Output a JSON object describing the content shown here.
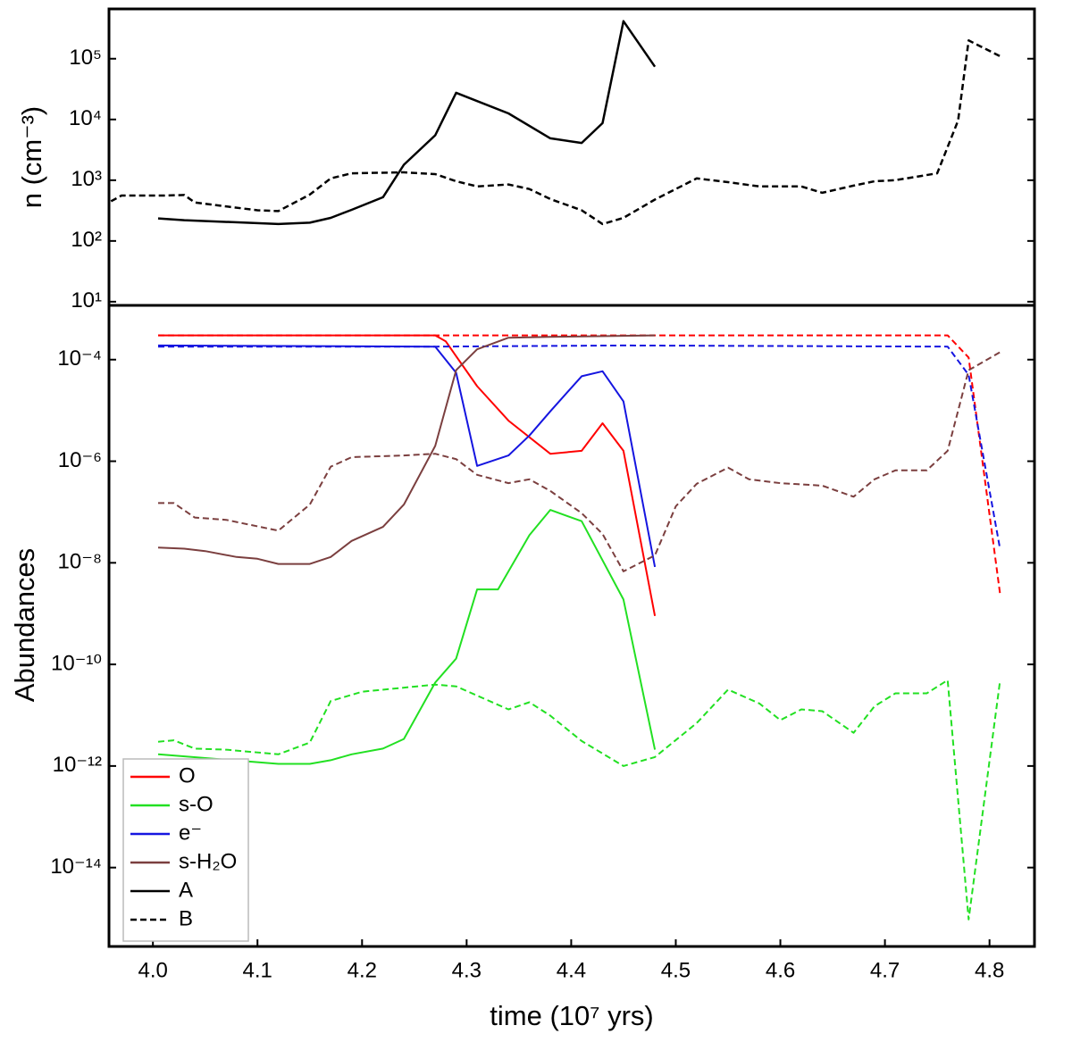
{
  "chart_data": [
    {
      "type": "line",
      "ylabel": "n (cm⁻³)",
      "log_y": true,
      "xlim": [
        3.958,
        4.843
      ],
      "ylim": [
        8.7,
        660000
      ],
      "yticks": [
        {
          "value": 10,
          "label": "10¹"
        },
        {
          "value": 100,
          "label": "10²"
        },
        {
          "value": 1000,
          "label": "10³"
        },
        {
          "value": 10000,
          "label": "10⁴"
        },
        {
          "value": 100000,
          "label": "10⁵"
        }
      ],
      "series": [
        {
          "name": "A",
          "color": "#000000",
          "dash": false,
          "x": [
            4.005,
            4.03,
            4.12,
            4.15,
            4.17,
            4.19,
            4.22,
            4.24,
            4.27,
            4.29,
            4.34,
            4.38,
            4.41,
            4.43,
            4.45,
            4.48
          ],
          "values": [
            235,
            220,
            190,
            200,
            240,
            325,
            525,
            1800,
            5500,
            27500,
            12600,
            4900,
            4100,
            8700,
            415000,
            74000
          ]
        },
        {
          "name": "B",
          "color": "#000000",
          "dash": true,
          "x": [
            3.96,
            3.97,
            4.01,
            4.03,
            4.04,
            4.1,
            4.12,
            4.15,
            4.17,
            4.19,
            4.24,
            4.27,
            4.29,
            4.31,
            4.34,
            4.36,
            4.38,
            4.41,
            4.43,
            4.45,
            4.48,
            4.52,
            4.55,
            4.58,
            4.62,
            4.64,
            4.67,
            4.69,
            4.71,
            4.75,
            4.77,
            4.78,
            4.81
          ],
          "values": [
            450,
            560,
            560,
            570,
            430,
            320,
            310,
            580,
            1070,
            1300,
            1350,
            1260,
            960,
            790,
            850,
            715,
            490,
            320,
            190,
            240,
            480,
            1070,
            930,
            790,
            790,
            620,
            815,
            960,
            1000,
            1300,
            9600,
            200000,
            110000
          ]
        }
      ]
    },
    {
      "type": "line",
      "xlabel": "time (10⁷ yrs)",
      "ylabel": "Abundances",
      "log_y": true,
      "legend": "lower left",
      "xlim": [
        3.958,
        4.843
      ],
      "ylim": [
        2.8e-16,
        0.00117
      ],
      "xticks": [
        {
          "value": 4,
          "label": "4.0"
        },
        4.1,
        4.2,
        4.3,
        4.4,
        4.5,
        4.6,
        4.7,
        4.8
      ],
      "yticks": [
        {
          "value": 0.0001,
          "label": "10⁻⁴"
        },
        {
          "value": 1e-06,
          "label": "10⁻⁶"
        },
        {
          "value": 1e-08,
          "label": "10⁻⁸"
        },
        {
          "value": 1e-10,
          "label": "10⁻¹⁰"
        },
        {
          "value": 1e-12,
          "label": "10⁻¹²"
        },
        {
          "value": 1e-14,
          "label": "10⁻¹⁴"
        }
      ],
      "series": [
        {
          "name": "O",
          "color": "#ff0000",
          "dash": false,
          "x": [
            4.005,
            4.27,
            4.28,
            4.31,
            4.34,
            4.38,
            4.41,
            4.43,
            4.45,
            4.48
          ],
          "values": [
            0.0003,
            0.0003,
            0.00023,
            3e-05,
            6.3e-06,
            1.4e-06,
            1.6e-06,
            5.6e-06,
            1.6e-06,
            9e-10
          ]
        },
        {
          "color": "#ff0000",
          "dash": true,
          "x": [
            4.005,
            4.27,
            4.76,
            4.78,
            4.81
          ],
          "values": [
            0.0003,
            0.0003,
            0.0003,
            0.00011,
            2.5e-09
          ]
        },
        {
          "name": "s-O",
          "color": "#22e022",
          "dash": false,
          "x": [
            4.005,
            4.12,
            4.15,
            4.17,
            4.19,
            4.22,
            4.24,
            4.27,
            4.29,
            4.31,
            4.33,
            4.36,
            4.38,
            4.41,
            4.45,
            4.48
          ],
          "values": [
            1.7e-12,
            1.1e-12,
            1.1e-12,
            1.3e-12,
            1.7e-12,
            2.2e-12,
            3.4e-12,
            4.4e-11,
            1.3e-10,
            3e-09,
            3e-09,
            3.5e-08,
            1.1e-07,
            6.6e-08,
            1.9e-09,
            2.1e-12
          ]
        },
        {
          "color": "#22e022",
          "dash": true,
          "x": [
            4.005,
            4.02,
            4.04,
            4.07,
            4.12,
            4.15,
            4.17,
            4.2,
            4.27,
            4.29,
            4.34,
            4.36,
            4.38,
            4.41,
            4.45,
            4.48,
            4.52,
            4.55,
            4.58,
            4.6,
            4.62,
            4.64,
            4.67,
            4.69,
            4.71,
            4.74,
            4.76,
            4.78,
            4.81
          ],
          "values": [
            3e-12,
            3.2e-12,
            2.2e-12,
            2.1e-12,
            1.7e-12,
            2.9e-12,
            1.9e-11,
            2.9e-11,
            4e-11,
            3.7e-11,
            1.3e-11,
            1.8e-11,
            9.8e-12,
            3.1e-12,
            1e-12,
            1.5e-12,
            7e-12,
            3.2e-11,
            1.7e-11,
            8e-12,
            1.3e-11,
            1.2e-11,
            4.5e-12,
            1.5e-11,
            2.7e-11,
            2.7e-11,
            4.9e-11,
            9.5e-16,
            4.7e-11
          ]
        },
        {
          "name": "e⁻",
          "color": "#1515e0",
          "dash": false,
          "x": [
            4.005,
            4.27,
            4.29,
            4.31,
            4.34,
            4.36,
            4.38,
            4.41,
            4.43,
            4.45,
            4.48
          ],
          "values": [
            0.00019,
            0.00018,
            5.5e-05,
            8.1e-07,
            1.3e-06,
            3.2e-06,
            9.6e-06,
            4.7e-05,
            5.9e-05,
            1.5e-05,
            8.3e-09
          ]
        },
        {
          "color": "#1515e0",
          "dash": true,
          "x": [
            4.005,
            4.27,
            4.45,
            4.76,
            4.78,
            4.81
          ],
          "values": [
            0.00018,
            0.00018,
            0.00019,
            0.00018,
            5e-05,
            1.9e-08
          ]
        },
        {
          "name": "s-H₂O",
          "color": "#7b3f3f",
          "dash": false,
          "x": [
            4.005,
            4.03,
            4.05,
            4.08,
            4.1,
            4.12,
            4.15,
            4.17,
            4.19,
            4.22,
            4.24,
            4.27,
            4.29,
            4.31,
            4.34,
            4.38,
            4.48
          ],
          "values": [
            2e-08,
            1.9e-08,
            1.7e-08,
            1.3e-08,
            1.2e-08,
            9.5e-09,
            9.5e-09,
            1.3e-08,
            2.7e-08,
            5.1e-08,
            1.4e-07,
            2e-06,
            6.2e-05,
            0.00016,
            0.00027,
            0.00028,
            0.0003
          ]
        },
        {
          "color": "#7b3f3f",
          "dash": true,
          "x": [
            4.005,
            4.02,
            4.04,
            4.07,
            4.12,
            4.15,
            4.17,
            4.19,
            4.24,
            4.27,
            4.29,
            4.31,
            4.34,
            4.36,
            4.38,
            4.41,
            4.43,
            4.45,
            4.48,
            4.5,
            4.52,
            4.55,
            4.57,
            4.6,
            4.64,
            4.67,
            4.69,
            4.71,
            4.74,
            4.76,
            4.78,
            4.81
          ],
          "values": [
            1.5e-07,
            1.5e-07,
            7.8e-08,
            7e-08,
            4.3e-08,
            1.4e-07,
            7.8e-07,
            1.2e-06,
            1.3e-06,
            1.4e-06,
            1.1e-06,
            5.4e-07,
            3.7e-07,
            4.4e-07,
            2.6e-07,
            9.5e-08,
            3.7e-08,
            6.8e-09,
            1.4e-08,
            1.3e-07,
            3.6e-07,
            7.5e-07,
            4.4e-07,
            3.7e-07,
            3.3e-07,
            2e-07,
            4.4e-07,
            6.6e-07,
            6.6e-07,
            1.6e-06,
            6.2e-05,
            0.00014
          ]
        }
      ]
    }
  ]
}
